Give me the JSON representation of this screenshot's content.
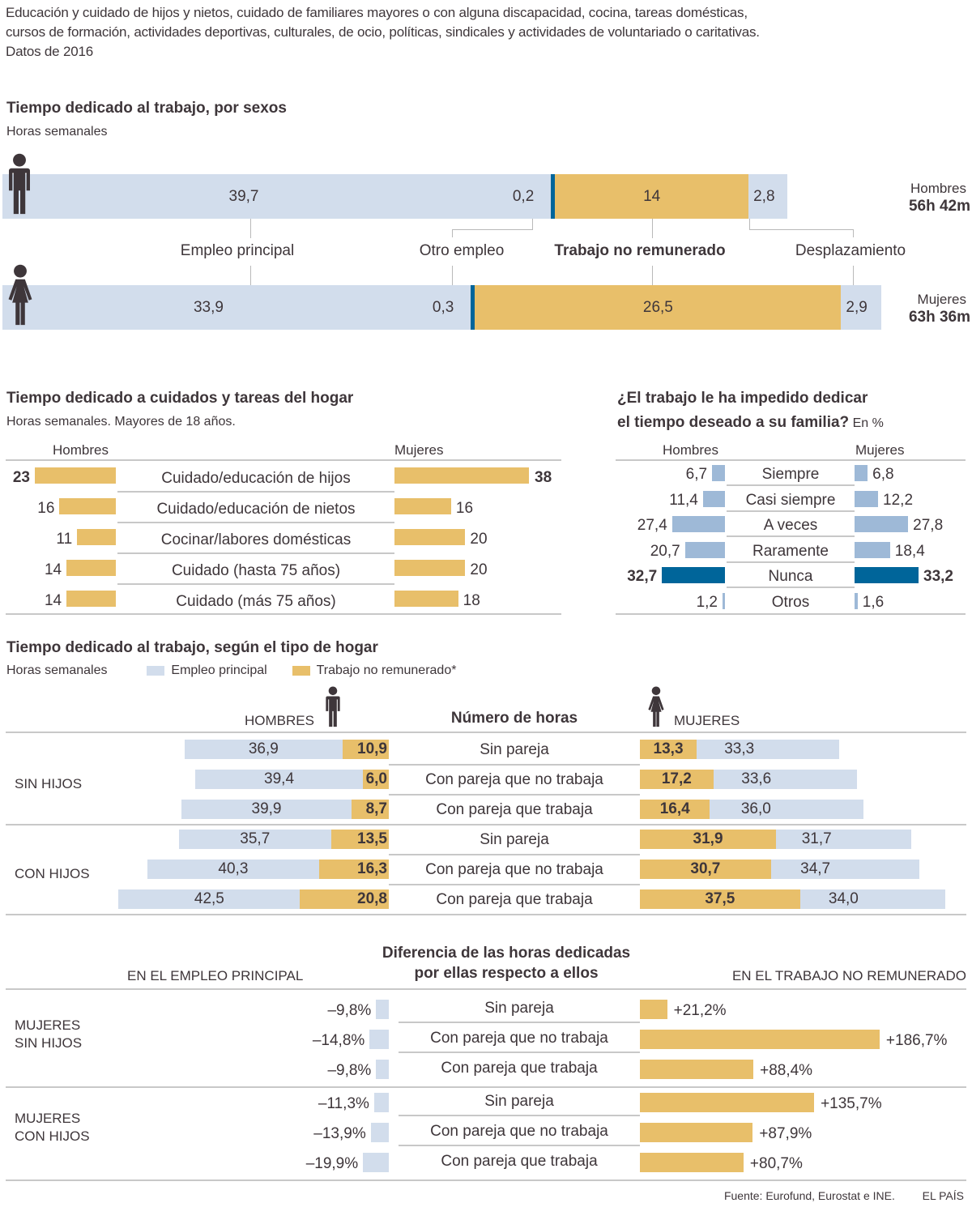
{
  "intro": {
    "lines": [
      "Educación y cuidado de hijos y nietos, cuidado de familiares mayores o con alguna discapacidad, cocina, tareas domésticas,",
      "cursos de formación, actividades deportivas, culturales, de ocio, políticas, sindicales y actividades de voluntariado o caritativas.",
      "Datos de 2016"
    ]
  },
  "colors": {
    "empleo": "#d2ddec",
    "no_remunerado": "#e8bf6a",
    "otro_empleo": "#00659a",
    "encuesta": "#9eb9d7",
    "encuesta_destacado": "#00659a",
    "text": "#3e363a"
  },
  "chart_data": [
    {
      "type": "bar",
      "stacked": true,
      "orientation": "horizontal",
      "title": "Tiempo dedicado al trabajo, por sexos",
      "subtitle": "Horas semanales",
      "categories": [
        "Hombres",
        "Mujeres"
      ],
      "series": [
        {
          "name": "Empleo principal",
          "values": [
            39.7,
            33.9
          ],
          "labels": [
            "39,7",
            "33,9"
          ]
        },
        {
          "name": "Otro empleo",
          "values": [
            0.2,
            0.3
          ],
          "labels": [
            "0,2",
            "0,3"
          ]
        },
        {
          "name": "Trabajo no remunerado",
          "values": [
            14,
            26.5
          ],
          "labels": [
            "14",
            "26,5"
          ]
        },
        {
          "name": "Desplazamiento",
          "values": [
            2.8,
            2.9
          ],
          "labels": [
            "2,8",
            "2,9"
          ]
        }
      ],
      "totals": [
        {
          "label": "Hombres",
          "value": "56h 42m"
        },
        {
          "label": "Mujeres",
          "value": "63h 36m"
        }
      ]
    },
    {
      "type": "bar",
      "orientation": "horizontal",
      "layout": "butterfly",
      "title": "Tiempo dedicado a cuidados y tareas del hogar",
      "subtitle": "Horas semanales. Mayores de 18 años.",
      "left_label": "Hombres",
      "right_label": "Mujeres",
      "categories": [
        "Cuidado/educación de hijos",
        "Cuidado/educación de nietos",
        "Cocinar/labores domésticas",
        "Cuidado (hasta 75 años)",
        "Cuidado (más 75 años)"
      ],
      "series": [
        {
          "name": "Hombres",
          "values": [
            23,
            16,
            11,
            14,
            14
          ],
          "labels": [
            "23",
            "16",
            "11",
            "14",
            "14"
          ]
        },
        {
          "name": "Mujeres",
          "values": [
            38,
            16,
            20,
            20,
            18
          ],
          "labels": [
            "38",
            "16",
            "20",
            "20",
            "18"
          ]
        }
      ],
      "highlight_index": 0
    },
    {
      "type": "bar",
      "orientation": "horizontal",
      "layout": "butterfly",
      "title_lines": [
        "¿El trabajo le ha impedido dedicar",
        "el tiempo deseado a su familia?"
      ],
      "unit": "En %",
      "left_label": "Hombres",
      "right_label": "Mujeres",
      "categories": [
        "Siempre",
        "Casi siempre",
        "A veces",
        "Raramente",
        "Nunca",
        "Otros"
      ],
      "series": [
        {
          "name": "Hombres",
          "values": [
            6.7,
            11.4,
            27.4,
            20.7,
            32.7,
            1.2
          ],
          "labels": [
            "6,7",
            "11,4",
            "27,4",
            "20,7",
            "32,7",
            "1,2"
          ]
        },
        {
          "name": "Mujeres",
          "values": [
            6.8,
            12.2,
            27.8,
            18.4,
            33.2,
            1.6
          ],
          "labels": [
            "6,8",
            "12,2",
            "27,8",
            "18,4",
            "33,2",
            "1,6"
          ]
        }
      ],
      "highlight_index": 4
    },
    {
      "type": "bar",
      "orientation": "horizontal",
      "layout": "butterfly-stacked",
      "title": "Tiempo dedicado al trabajo, según el tipo de hogar",
      "subtitle": "Horas semanales",
      "legend": [
        {
          "name": "Empleo principal",
          "color": "#d2ddec"
        },
        {
          "name": "Trabajo no remunerado*",
          "color": "#e8bf6a"
        }
      ],
      "left_label": "HOMBRES",
      "right_label": "MUJERES",
      "center_label": "Número de horas",
      "groups": [
        {
          "name": "SIN HIJOS",
          "rows": [
            {
              "category": "Sin pareja",
              "hombres": {
                "empleo": 36.9,
                "no_remunerado": 10.9,
                "empleo_label": "36,9",
                "no_remunerado_label": "10,9"
              },
              "mujeres": {
                "no_remunerado": 13.3,
                "empleo": 33.3,
                "no_remunerado_label": "13,3",
                "empleo_label": "33,3"
              }
            },
            {
              "category": "Con pareja que no trabaja",
              "hombres": {
                "empleo": 39.4,
                "no_remunerado": 6.0,
                "empleo_label": "39,4",
                "no_remunerado_label": "6,0"
              },
              "mujeres": {
                "no_remunerado": 17.2,
                "empleo": 33.6,
                "no_remunerado_label": "17,2",
                "empleo_label": "33,6"
              }
            },
            {
              "category": "Con pareja que trabaja",
              "hombres": {
                "empleo": 39.9,
                "no_remunerado": 8.7,
                "empleo_label": "39,9",
                "no_remunerado_label": "8,7"
              },
              "mujeres": {
                "no_remunerado": 16.4,
                "empleo": 36.0,
                "no_remunerado_label": "16,4",
                "empleo_label": "36,0"
              }
            }
          ]
        },
        {
          "name": "CON HIJOS",
          "rows": [
            {
              "category": "Sin pareja",
              "hombres": {
                "empleo": 35.7,
                "no_remunerado": 13.5,
                "empleo_label": "35,7",
                "no_remunerado_label": "13,5"
              },
              "mujeres": {
                "no_remunerado": 31.9,
                "empleo": 31.7,
                "no_remunerado_label": "31,9",
                "empleo_label": "31,7"
              }
            },
            {
              "category": "Con pareja que no trabaja",
              "hombres": {
                "empleo": 40.3,
                "no_remunerado": 16.3,
                "empleo_label": "40,3",
                "no_remunerado_label": "16,3"
              },
              "mujeres": {
                "no_remunerado": 30.7,
                "empleo": 34.7,
                "no_remunerado_label": "30,7",
                "empleo_label": "34,7"
              }
            },
            {
              "category": "Con pareja que trabaja",
              "hombres": {
                "empleo": 42.5,
                "no_remunerado": 20.8,
                "empleo_label": "42,5",
                "no_remunerado_label": "20,8"
              },
              "mujeres": {
                "no_remunerado": 37.5,
                "empleo": 34.0,
                "no_remunerado_label": "37,5",
                "empleo_label": "34,0"
              }
            }
          ]
        }
      ]
    },
    {
      "type": "bar",
      "orientation": "horizontal",
      "layout": "butterfly",
      "title_lines": [
        "Diferencia de las horas dedicadas",
        "por ellas respecto a ellos"
      ],
      "left_label": "EN EL EMPLEO PRINCIPAL",
      "right_label": "EN EL TRABAJO NO REMUNERADO",
      "unit": "%",
      "groups": [
        {
          "name_lines": [
            "MUJERES",
            "SIN HIJOS"
          ],
          "rows": [
            {
              "category": "Sin pareja",
              "empleo": -9.8,
              "no_remunerado": 21.2,
              "empleo_label": "–9,8%",
              "no_remunerado_label": "+21,2%"
            },
            {
              "category": "Con pareja que no trabaja",
              "empleo": -14.8,
              "no_remunerado": 186.7,
              "empleo_label": "–14,8%",
              "no_remunerado_label": "+186,7%"
            },
            {
              "category": "Con pareja que trabaja",
              "empleo": -9.8,
              "no_remunerado": 88.4,
              "empleo_label": "–9,8%",
              "no_remunerado_label": "+88,4%"
            }
          ]
        },
        {
          "name_lines": [
            "MUJERES",
            "CON HIJOS"
          ],
          "rows": [
            {
              "category": "Sin pareja",
              "empleo": -11.3,
              "no_remunerado": 135.7,
              "empleo_label": "–11,3%",
              "no_remunerado_label": "+135,7%"
            },
            {
              "category": "Con pareja que no trabaja",
              "empleo": -13.9,
              "no_remunerado": 87.9,
              "empleo_label": "–13,9%",
              "no_remunerado_label": "+87,9%"
            },
            {
              "category": "Con pareja que trabaja",
              "empleo": -19.9,
              "no_remunerado": 80.7,
              "empleo_label": "–19,9%",
              "no_remunerado_label": "+80,7%"
            }
          ]
        }
      ]
    }
  ],
  "footer": {
    "source": "Fuente: Eurofund, Eurostat e INE.",
    "brand": "EL PAÍS"
  }
}
